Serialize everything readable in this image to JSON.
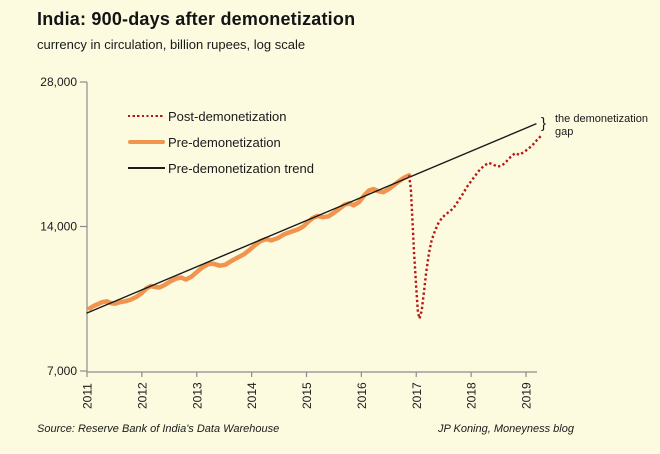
{
  "header": {
    "title": "India: 900-days after demonetization",
    "subtitle": "currency in circulation, billion rupees, log scale"
  },
  "footer": {
    "source": "Source: Reserve Bank of India's Data Warehouse",
    "credit": "JP Koning, Moneyness blog"
  },
  "annotation": {
    "brace": "}",
    "line1": "the demonetization",
    "line2": "gap"
  },
  "colors": {
    "background": "#FCFADF",
    "post_demonetization": "#B51616",
    "pre_demonetization": "#F0944E",
    "trend": "#1A1A1A",
    "axis": "#8C8C8C",
    "text": "#1A1A1A"
  },
  "legend": [
    {
      "label": "Post-demonetization",
      "style": "dotted",
      "color": "#B51616"
    },
    {
      "label": "Pre-demonetization",
      "style": "thick",
      "color": "#F0944E"
    },
    {
      "label": "Pre-demonetization trend",
      "style": "thin",
      "color": "#1A1A1A"
    }
  ],
  "chart_data": {
    "type": "line",
    "title": "India: 900-days after demonetization",
    "ylabel": "currency in circulation, billion rupees, log scale",
    "xlabel": "",
    "y_scale": "log",
    "grid": false,
    "legend_position": "top-left",
    "x_range": [
      2011,
      2019.35
    ],
    "y_range": [
      7000,
      28000
    ],
    "x_ticks": [
      "2011",
      "2012",
      "2013",
      "2014",
      "2015",
      "2016",
      "2017",
      "2018",
      "2019"
    ],
    "y_ticks": [
      {
        "label": "28,000",
        "value": 28000
      },
      {
        "label": "14,000",
        "value": 14000
      },
      {
        "label": "7,000",
        "value": 7000
      }
    ],
    "series": [
      {
        "name": "Pre-demonetization",
        "style": "solid-thick",
        "color": "#F0944E",
        "points": [
          [
            2011.05,
            9450
          ],
          [
            2011.12,
            9560
          ],
          [
            2011.2,
            9650
          ],
          [
            2011.28,
            9740
          ],
          [
            2011.36,
            9780
          ],
          [
            2011.44,
            9690
          ],
          [
            2011.52,
            9670
          ],
          [
            2011.6,
            9740
          ],
          [
            2011.7,
            9780
          ],
          [
            2011.8,
            9860
          ],
          [
            2011.9,
            9990
          ],
          [
            2012.0,
            10180
          ],
          [
            2012.08,
            10400
          ],
          [
            2012.16,
            10520
          ],
          [
            2012.24,
            10480
          ],
          [
            2012.32,
            10450
          ],
          [
            2012.42,
            10580
          ],
          [
            2012.52,
            10760
          ],
          [
            2012.62,
            10900
          ],
          [
            2012.72,
            10960
          ],
          [
            2012.8,
            10850
          ],
          [
            2012.9,
            11000
          ],
          [
            2013.0,
            11250
          ],
          [
            2013.1,
            11500
          ],
          [
            2013.2,
            11680
          ],
          [
            2013.3,
            11710
          ],
          [
            2013.42,
            11600
          ],
          [
            2013.52,
            11650
          ],
          [
            2013.62,
            11850
          ],
          [
            2013.74,
            12050
          ],
          [
            2013.86,
            12250
          ],
          [
            2013.96,
            12500
          ],
          [
            2014.06,
            12800
          ],
          [
            2014.16,
            13050
          ],
          [
            2014.26,
            13180
          ],
          [
            2014.36,
            13100
          ],
          [
            2014.48,
            13250
          ],
          [
            2014.6,
            13500
          ],
          [
            2014.72,
            13650
          ],
          [
            2014.84,
            13800
          ],
          [
            2014.94,
            14000
          ],
          [
            2015.04,
            14350
          ],
          [
            2015.12,
            14600
          ],
          [
            2015.2,
            14720
          ],
          [
            2015.3,
            14640
          ],
          [
            2015.4,
            14700
          ],
          [
            2015.5,
            14950
          ],
          [
            2015.6,
            15250
          ],
          [
            2015.7,
            15550
          ],
          [
            2015.78,
            15650
          ],
          [
            2015.86,
            15500
          ],
          [
            2015.96,
            15750
          ],
          [
            2016.06,
            16300
          ],
          [
            2016.14,
            16650
          ],
          [
            2016.22,
            16750
          ],
          [
            2016.3,
            16600
          ],
          [
            2016.4,
            16500
          ],
          [
            2016.5,
            16750
          ],
          [
            2016.6,
            17100
          ],
          [
            2016.7,
            17450
          ],
          [
            2016.78,
            17700
          ],
          [
            2016.87,
            17900
          ]
        ]
      },
      {
        "name": "Pre-demonetization trend",
        "style": "solid-thin",
        "color": "#1A1A1A",
        "points": [
          [
            2011.0,
            9245
          ],
          [
            2019.18,
            22900
          ]
        ]
      },
      {
        "name": "Post-demonetization",
        "style": "dotted",
        "color": "#B51616",
        "points": [
          [
            2016.87,
            17900
          ],
          [
            2016.9,
            16800
          ],
          [
            2016.93,
            14500
          ],
          [
            2016.96,
            12300
          ],
          [
            2017.0,
            10400
          ],
          [
            2017.03,
            9300
          ],
          [
            2017.06,
            9000
          ],
          [
            2017.1,
            9350
          ],
          [
            2017.14,
            10200
          ],
          [
            2017.18,
            11200
          ],
          [
            2017.23,
            12300
          ],
          [
            2017.28,
            13100
          ],
          [
            2017.34,
            13700
          ],
          [
            2017.4,
            14200
          ],
          [
            2017.47,
            14600
          ],
          [
            2017.54,
            14850
          ],
          [
            2017.61,
            15050
          ],
          [
            2017.68,
            15300
          ],
          [
            2017.76,
            15800
          ],
          [
            2017.84,
            16300
          ],
          [
            2017.92,
            16900
          ],
          [
            2018.0,
            17400
          ],
          [
            2018.08,
            17900
          ],
          [
            2018.16,
            18400
          ],
          [
            2018.24,
            18750
          ],
          [
            2018.32,
            19000
          ],
          [
            2018.4,
            18850
          ],
          [
            2018.48,
            18650
          ],
          [
            2018.56,
            18750
          ],
          [
            2018.64,
            19100
          ],
          [
            2018.72,
            19550
          ],
          [
            2018.8,
            19900
          ],
          [
            2018.88,
            19750
          ],
          [
            2018.96,
            20000
          ],
          [
            2019.04,
            20300
          ],
          [
            2019.12,
            20700
          ],
          [
            2019.2,
            21200
          ],
          [
            2019.27,
            21600
          ]
        ]
      }
    ]
  }
}
